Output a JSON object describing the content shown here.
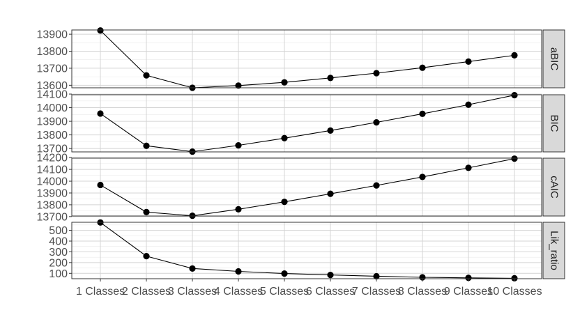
{
  "chart_data": {
    "type": "line",
    "categories": [
      "1 Classes",
      "2 Classes",
      "3 Classes",
      "4 Classes",
      "5 Classes",
      "6 Classes",
      "7 Classes",
      "8 Classes",
      "9 Classes",
      "10 Classes"
    ],
    "facet_strip_position": "right",
    "grid": true,
    "panels": [
      {
        "strip": "aBIC",
        "ylim": [
          13585,
          13925
        ],
        "yticks": [
          13600,
          13700,
          13800,
          13900
        ],
        "values": [
          13922,
          13658,
          13585,
          13598,
          13617,
          13643,
          13671,
          13703,
          13739,
          13776
        ]
      },
      {
        "strip": "BIC",
        "ylim": [
          13675,
          14095
        ],
        "yticks": [
          13700,
          13800,
          13900,
          14000,
          14100
        ],
        "values": [
          13957,
          13720,
          13677,
          13723,
          13776,
          13832,
          13892,
          13955,
          14022,
          14092
        ]
      },
      {
        "strip": "cAIC",
        "ylim": [
          13705,
          14195
        ],
        "yticks": [
          13700,
          13800,
          13900,
          14000,
          14100,
          14200
        ],
        "values": [
          13968,
          13738,
          13707,
          13762,
          13825,
          13893,
          13964,
          14036,
          14113,
          14191
        ]
      },
      {
        "strip": "Lik_ratio",
        "ylim": [
          50,
          575
        ],
        "yticks": [
          100,
          200,
          300,
          400,
          500
        ],
        "values": [
          573,
          260,
          145,
          118,
          98,
          85,
          73,
          63,
          58,
          54
        ]
      }
    ]
  }
}
